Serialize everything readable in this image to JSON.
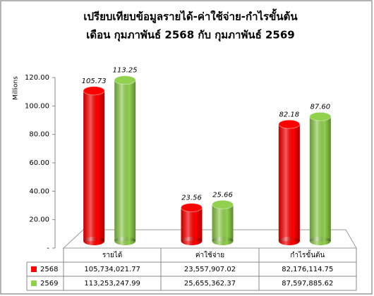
{
  "chart_data": {
    "type": "bar",
    "title": [
      "เปรียบเทียบข้อมูลรายได้-ค่าใช้จ่าย-กำไรขั้นต้น",
      "เดือน กุมภาพันธ์ 2568 กับ กุมภาพันธ์ 2569"
    ],
    "y_label": "Millions",
    "categories": [
      "รายได้",
      "ค่าใช้จ่าย",
      "กำไรขั้นต้น"
    ],
    "series": [
      {
        "name": "2568",
        "color": "#ff0000",
        "values": [
          105.73,
          23.56,
          82.18
        ],
        "value_labels": [
          "105.73",
          "23.56",
          "82.18"
        ],
        "table_values": [
          "105,734,021.77",
          "23,557,907.02",
          "82,176,114.75"
        ]
      },
      {
        "name": "2569",
        "color": "#92d050",
        "values": [
          113.25,
          25.66,
          87.6
        ],
        "value_labels": [
          "113.25",
          "25.66",
          "87.60"
        ],
        "table_values": [
          "113,253,247.99",
          "25,655,362.37",
          "87,597,885.62"
        ]
      }
    ],
    "ylim": [
      0,
      120
    ],
    "yticks": [
      {
        "value": 0,
        "label": "-"
      },
      {
        "value": 20,
        "label": "20.00"
      },
      {
        "value": 40,
        "label": "40.00"
      },
      {
        "value": 60,
        "label": "60.00"
      },
      {
        "value": 80,
        "label": "80.00"
      },
      {
        "value": 100,
        "label": "100.00"
      },
      {
        "value": 120,
        "label": "120.00"
      }
    ]
  }
}
